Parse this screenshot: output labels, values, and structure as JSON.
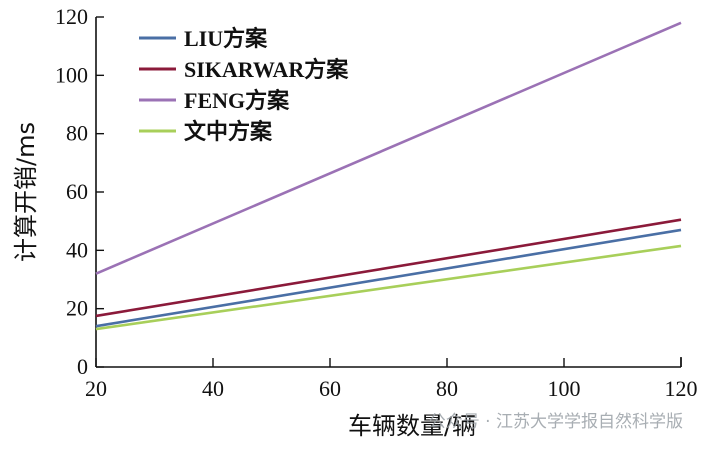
{
  "chart_data": {
    "type": "line",
    "title": "",
    "xlabel": "车辆数量/辆",
    "ylabel": "计算开销/ms",
    "xlim": [
      20,
      120
    ],
    "ylim": [
      0,
      120
    ],
    "x_ticks": [
      "20",
      "40",
      "60",
      "80",
      "100",
      "120"
    ],
    "y_ticks": [
      "0",
      "20",
      "40",
      "60",
      "80",
      "100",
      "120"
    ],
    "grid": false,
    "legend_position": "top-left",
    "x": [
      20,
      120
    ],
    "series": [
      {
        "name": "LIU方案",
        "color": "#4a6fa5",
        "values": [
          14,
          47
        ]
      },
      {
        "name": "SIKARWAR方案",
        "color": "#8b1a3a",
        "values": [
          17.5,
          50.5
        ]
      },
      {
        "name": "FENG方案",
        "color": "#9b72b5",
        "values": [
          32,
          118
        ]
      },
      {
        "name": "文中方案",
        "color": "#a8cf5a",
        "values": [
          13,
          41.5
        ]
      }
    ]
  },
  "watermark": "公众号 · 江苏大学学报自然科学版"
}
